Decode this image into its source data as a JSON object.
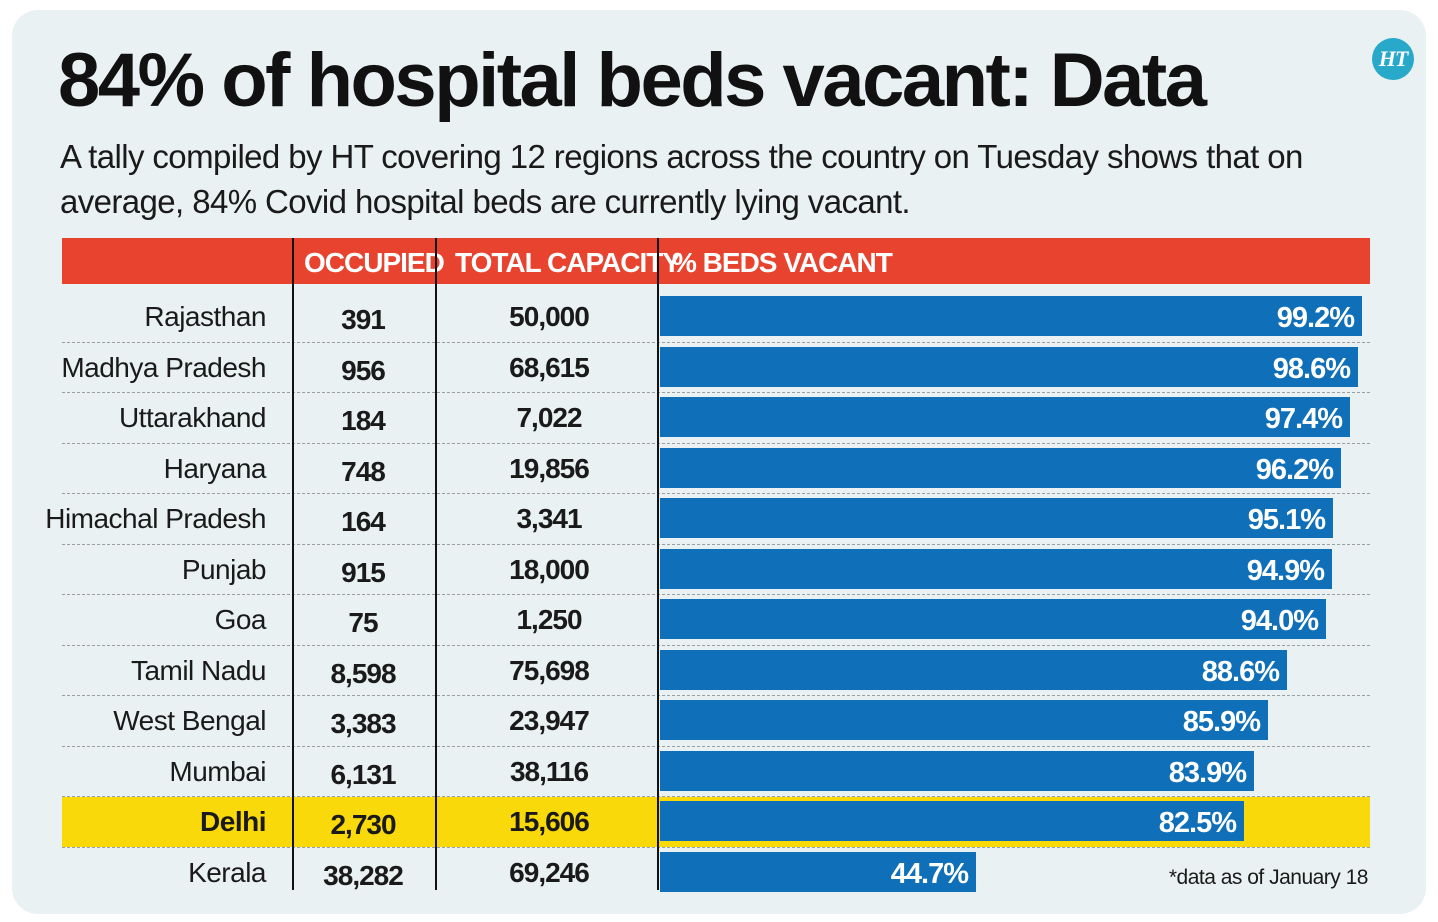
{
  "header": {
    "title": "84% of hospital beds vacant: Data",
    "subtitle": "A tally compiled by HT covering 12 regions across the country on Tuesday shows that on average, 84% Covid hospital beds are currently lying vacant.",
    "logo": "HT"
  },
  "chart_data": {
    "type": "table",
    "columns": [
      "",
      "OCCUPIED",
      "TOTAL CAPACITY",
      "% BEDS VACANT"
    ],
    "rows": [
      {
        "region": "Rajasthan",
        "occupied": "391",
        "capacity": "50,000",
        "vacant_label": "99.2%",
        "vacant": 99.2,
        "highlight": false
      },
      {
        "region": "Madhya Pradesh",
        "occupied": "956",
        "capacity": "68,615",
        "vacant_label": "98.6%",
        "vacant": 98.6,
        "highlight": false
      },
      {
        "region": "Uttarakhand",
        "occupied": "184",
        "capacity": "7,022",
        "vacant_label": "97.4%",
        "vacant": 97.4,
        "highlight": false
      },
      {
        "region": "Haryana",
        "occupied": "748",
        "capacity": "19,856",
        "vacant_label": "96.2%",
        "vacant": 96.2,
        "highlight": false
      },
      {
        "region": "Himachal Pradesh",
        "occupied": "164",
        "capacity": "3,341",
        "vacant_label": "95.1%",
        "vacant": 95.1,
        "highlight": false
      },
      {
        "region": "Punjab",
        "occupied": "915",
        "capacity": "18,000",
        "vacant_label": "94.9%",
        "vacant": 94.9,
        "highlight": false
      },
      {
        "region": "Goa",
        "occupied": "75",
        "capacity": "1,250",
        "vacant_label": "94.0%",
        "vacant": 94.0,
        "highlight": false
      },
      {
        "region": "Tamil Nadu",
        "occupied": "8,598",
        "capacity": "75,698",
        "vacant_label": "88.6%",
        "vacant": 88.6,
        "highlight": false
      },
      {
        "region": "West Bengal",
        "occupied": "3,383",
        "capacity": "23,947",
        "vacant_label": "85.9%",
        "vacant": 85.9,
        "highlight": false
      },
      {
        "region": "Mumbai",
        "occupied": "6,131",
        "capacity": "38,116",
        "vacant_label": "83.9%",
        "vacant": 83.9,
        "highlight": false
      },
      {
        "region": "Delhi",
        "occupied": "2,730",
        "capacity": "15,606",
        "vacant_label": "82.5%",
        "vacant": 82.5,
        "highlight": true
      },
      {
        "region": "Kerala",
        "occupied": "38,282",
        "capacity": "69,246",
        "vacant_label": "44.7%",
        "vacant": 44.7,
        "highlight": false
      }
    ],
    "footnote": "*data as of January 18",
    "colors": {
      "header": "#e8432e",
      "bar": "#0f6fb8",
      "highlight": "#f9d90a",
      "background": "#eaf1f2"
    }
  }
}
